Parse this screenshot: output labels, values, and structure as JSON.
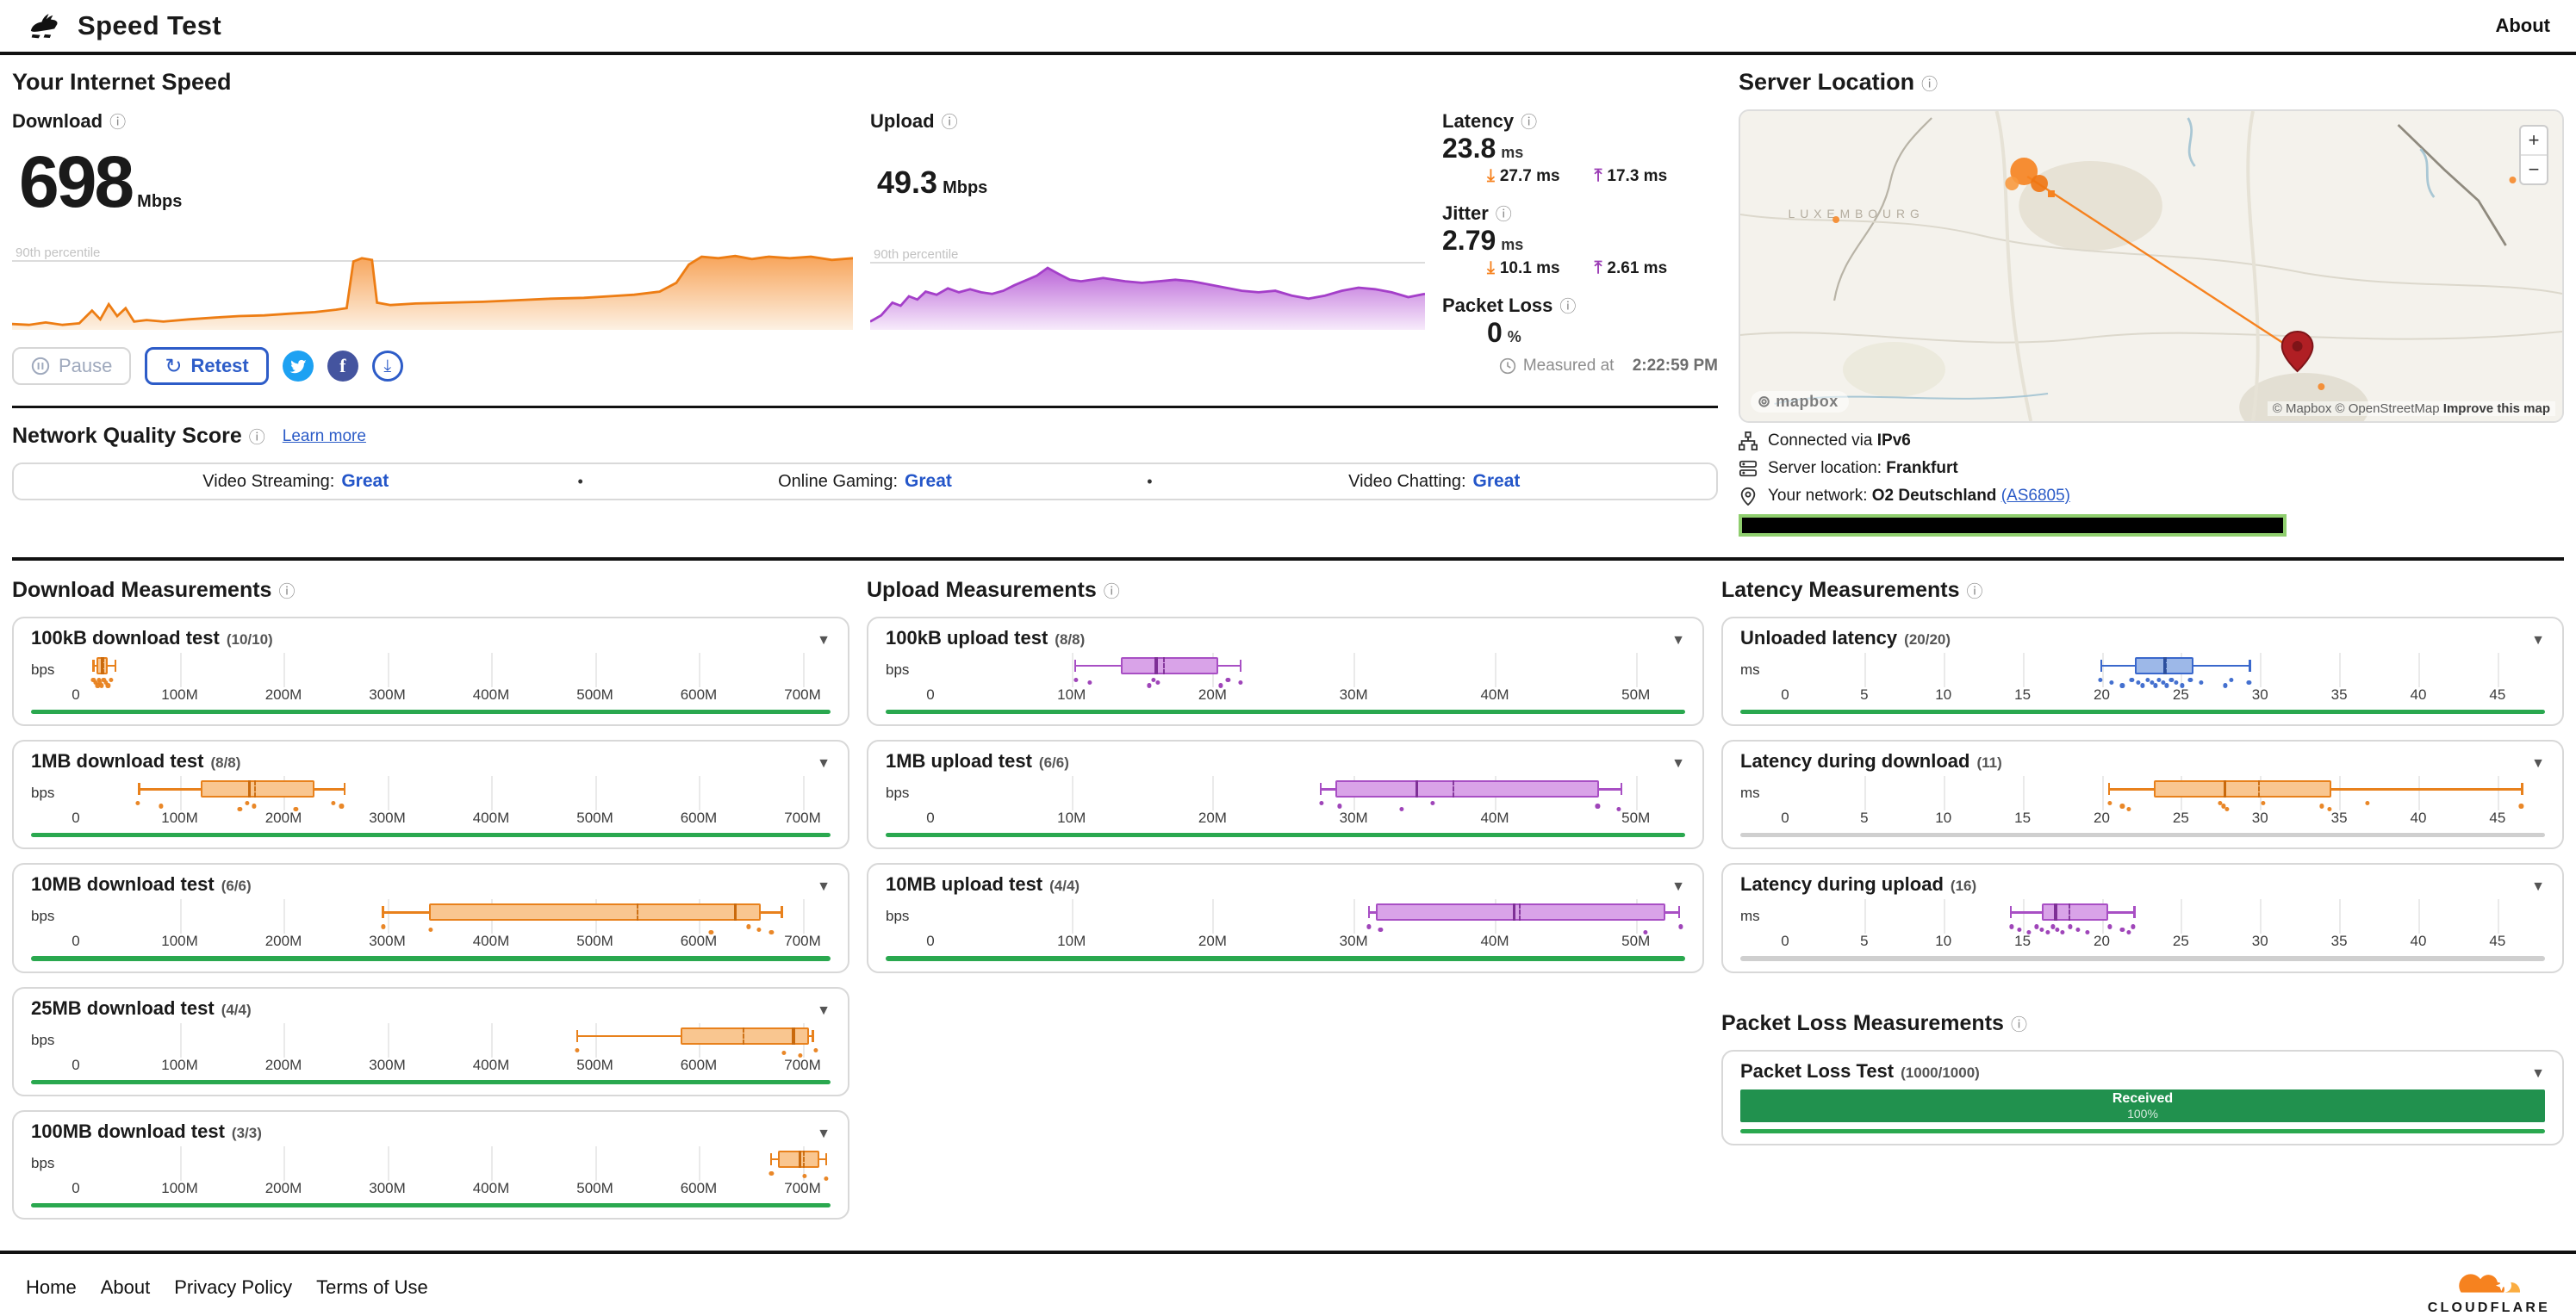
{
  "header": {
    "title": "Speed Test",
    "about": "About"
  },
  "icons": {
    "info": "ⓘ",
    "chevron_down": "▼",
    "down_arrow": "⤓",
    "up_arrow": "⤒",
    "retest": "↻",
    "bullet": "•",
    "download_share": "⤓"
  },
  "accent_colors": {
    "orange": "#f6821f",
    "purple": "#9a3bb5",
    "blue": "#3a68cc",
    "green": "#2aa84f",
    "link_blue": "#2b5bc7",
    "grey_bar": "#cfcfcf",
    "packet_green": "#21914e"
  },
  "speed": {
    "title": "Your Internet Speed",
    "download": {
      "label": "Download",
      "value": "698",
      "unit": "Mbps"
    },
    "upload": {
      "label": "Upload",
      "value": "49.3",
      "unit": "Mbps"
    },
    "latency": {
      "label": "Latency",
      "value": "23.8",
      "unit": "ms",
      "download_value": "27.7 ms",
      "upload_value": "17.3 ms"
    },
    "jitter": {
      "label": "Jitter",
      "value": "2.79",
      "unit": "ms",
      "download_value": "10.1 ms",
      "upload_value": "2.61 ms"
    },
    "packet_loss": {
      "label": "Packet Loss",
      "value": "0",
      "unit": "%"
    },
    "controls": {
      "pause": "Pause",
      "retest": "Retest"
    },
    "measured_prefix": "Measured at",
    "measured_time": "2:22:59 PM"
  },
  "nqs": {
    "title": "Network Quality Score",
    "learn_more": "Learn more",
    "separator": "•",
    "items": [
      {
        "label": "Video Streaming:",
        "value": "Great"
      },
      {
        "label": "Online Gaming:",
        "value": "Great"
      },
      {
        "label": "Video Chatting:",
        "value": "Great"
      }
    ]
  },
  "server": {
    "title": "Server Location",
    "map": {
      "region": "LUXEMBOURG",
      "zoom_in": "+",
      "zoom_out": "−",
      "logo": "mapbox",
      "attribution": "© Mapbox © OpenStreetMap",
      "improve": "Improve this map"
    },
    "connected_label": "Connected via",
    "connected_value": "IPv6",
    "location_label": "Server location:",
    "location_value": "Frankfurt",
    "network_label": "Your network:",
    "network_value": "O2 Deutschland",
    "network_asn": "(AS6805)"
  },
  "measurements": {
    "download_title": "Download Measurements",
    "upload_title": "Upload Measurements",
    "latency_title": "Latency Measurements",
    "packet_loss_title": "Packet Loss Measurements"
  },
  "footer": {
    "links": [
      "Home",
      "About",
      "Privacy Policy",
      "Terms of Use"
    ],
    "brand": "CLOUDFLARE"
  },
  "palettes": {
    "orange": {
      "stroke": "#e8811c",
      "fill": "#f9c690",
      "median": "#c9690c",
      "dot": "#e8811c"
    },
    "purple": {
      "stroke": "#a84fc4",
      "fill": "#d9a3e8",
      "median": "#7e2f96",
      "dot": "#9a3bb5"
    },
    "blue": {
      "stroke": "#3a68cc",
      "fill": "#9db8e8",
      "median": "#2c4f9e",
      "dot": "#3a68cc"
    }
  },
  "chart_data": [
    {
      "id": "download_speed_timeline",
      "type": "area",
      "label": "Download",
      "current_value_mbps": 698,
      "percentile_label": "90th percentile",
      "percentile_y": 0.2,
      "color": "#ed7d14",
      "fill_top": "#f7a45a",
      "fill_bottom": "#fdf1e3",
      "points": [
        [
          0,
          3
        ],
        [
          2,
          2
        ],
        [
          4,
          5
        ],
        [
          6,
          2
        ],
        [
          8,
          4
        ],
        [
          9.5,
          20
        ],
        [
          10.5,
          9
        ],
        [
          11.5,
          28
        ],
        [
          12.5,
          13
        ],
        [
          13.5,
          23
        ],
        [
          14.5,
          6
        ],
        [
          16,
          8
        ],
        [
          18,
          6
        ],
        [
          21,
          9
        ],
        [
          24,
          11
        ],
        [
          27,
          13
        ],
        [
          30,
          14
        ],
        [
          33,
          16
        ],
        [
          36,
          18
        ],
        [
          38.5,
          21
        ],
        [
          39.8,
          23
        ],
        [
          40.6,
          82
        ],
        [
          41.6,
          86
        ],
        [
          42.8,
          84
        ],
        [
          43.4,
          30
        ],
        [
          45,
          27
        ],
        [
          48,
          29
        ],
        [
          52,
          30
        ],
        [
          56,
          31
        ],
        [
          60,
          33
        ],
        [
          64,
          35
        ],
        [
          68,
          36
        ],
        [
          71,
          38
        ],
        [
          74,
          40
        ],
        [
          77,
          44
        ],
        [
          79,
          55
        ],
        [
          80.5,
          78
        ],
        [
          82,
          88
        ],
        [
          84,
          86
        ],
        [
          86,
          89
        ],
        [
          88,
          85
        ],
        [
          90,
          88
        ],
        [
          92.5,
          86
        ],
        [
          95,
          88
        ],
        [
          97.5,
          84
        ],
        [
          100,
          86
        ]
      ]
    },
    {
      "id": "upload_speed_timeline",
      "type": "area",
      "label": "Upload",
      "current_value_mbps": 49.3,
      "percentile_label": "90th percentile",
      "percentile_y": 0.22,
      "color": "#a43fc9",
      "fill_top": "#bb66d8",
      "fill_bottom": "#f7ebfb",
      "points": [
        [
          0,
          6
        ],
        [
          2,
          14
        ],
        [
          4,
          30
        ],
        [
          5.5,
          26
        ],
        [
          7,
          38
        ],
        [
          8.5,
          34
        ],
        [
          10,
          44
        ],
        [
          12,
          40
        ],
        [
          14,
          48
        ],
        [
          16,
          43
        ],
        [
          18,
          47
        ],
        [
          20,
          43
        ],
        [
          22,
          41
        ],
        [
          24,
          45
        ],
        [
          26,
          52
        ],
        [
          28,
          58
        ],
        [
          30,
          64
        ],
        [
          32,
          74
        ],
        [
          34,
          66
        ],
        [
          36,
          59
        ],
        [
          38,
          57
        ],
        [
          40,
          59
        ],
        [
          42,
          61
        ],
        [
          44,
          59
        ],
        [
          46,
          57
        ],
        [
          49,
          55
        ],
        [
          52,
          57
        ],
        [
          55,
          59
        ],
        [
          58,
          57
        ],
        [
          61,
          53
        ],
        [
          64,
          49
        ],
        [
          67,
          45
        ],
        [
          70,
          43
        ],
        [
          73,
          45
        ],
        [
          76,
          39
        ],
        [
          79,
          35
        ],
        [
          82,
          39
        ],
        [
          85,
          45
        ],
        [
          88,
          49
        ],
        [
          91,
          47
        ],
        [
          94,
          43
        ],
        [
          97,
          37
        ],
        [
          100,
          41
        ]
      ]
    },
    {
      "id": "download_measurements",
      "type": "boxplot_group",
      "unit": "bps",
      "axis_max": 727,
      "value_scale": "Mbps",
      "tick_values": [
        0,
        100,
        200,
        300,
        400,
        500,
        600,
        700
      ],
      "tick_labels": [
        "0",
        "100M",
        "200M",
        "300M",
        "400M",
        "500M",
        "600M",
        "700M"
      ],
      "charts": [
        {
          "label": "100kB download test",
          "count": "(10/10)",
          "palette": "orange",
          "bar_color": "green",
          "low": 16,
          "q1": 20,
          "median": 24,
          "mean": 26,
          "q3": 31,
          "high": 37,
          "samples": [
            17,
            19,
            21,
            22,
            23,
            25,
            27,
            29,
            31,
            34
          ]
        },
        {
          "label": "1MB download test",
          "count": "(8/8)",
          "palette": "orange",
          "bar_color": "green",
          "low": 60,
          "q1": 120,
          "median": 166,
          "mean": 172,
          "q3": 230,
          "high": 258,
          "samples": [
            60,
            82,
            158,
            165,
            172,
            212,
            248,
            256
          ]
        },
        {
          "label": "10MB download test",
          "count": "(6/6)",
          "palette": "orange",
          "bar_color": "green",
          "low": 295,
          "q1": 340,
          "median": 634,
          "mean": 540,
          "q3": 660,
          "high": 679,
          "samples": [
            296,
            342,
            612,
            648,
            658,
            670
          ]
        },
        {
          "label": "25MB download test",
          "count": "(4/4)",
          "palette": "orange",
          "bar_color": "green",
          "low": 482,
          "q1": 583,
          "median": 690,
          "mean": 642,
          "q3": 706,
          "high": 709,
          "samples": [
            483,
            682,
            698,
            713
          ]
        },
        {
          "label": "100MB download test",
          "count": "(3/3)",
          "palette": "orange",
          "bar_color": "green",
          "low": 669,
          "q1": 676,
          "median": 696,
          "mean": 700,
          "q3": 716,
          "high": 722,
          "samples": [
            670,
            702,
            723
          ]
        }
      ]
    },
    {
      "id": "upload_measurements",
      "type": "boxplot_group",
      "unit": "bps",
      "axis_max": 53.5,
      "value_scale": "Mbps",
      "tick_values": [
        0,
        10,
        20,
        30,
        40,
        50
      ],
      "tick_labels": [
        "0",
        "10M",
        "20M",
        "30M",
        "40M",
        "50M"
      ],
      "charts": [
        {
          "label": "100kB upload test",
          "count": "(8/8)",
          "palette": "purple",
          "bar_color": "green",
          "low": 10.2,
          "q1": 13.5,
          "median": 15.9,
          "mean": 16.5,
          "q3": 20.4,
          "high": 21.9,
          "samples": [
            10.3,
            11.3,
            15.5,
            15.8,
            16.1,
            20.6,
            21.1,
            22
          ]
        },
        {
          "label": "1MB upload test",
          "count": "(6/6)",
          "palette": "purple",
          "bar_color": "green",
          "low": 27.6,
          "q1": 28.7,
          "median": 34.4,
          "mean": 37,
          "q3": 47.4,
          "high": 48.9,
          "samples": [
            27.7,
            29,
            33.4,
            35.6,
            47.3,
            48.8
          ]
        },
        {
          "label": "10MB upload test",
          "count": "(4/4)",
          "palette": "purple",
          "bar_color": "green",
          "low": 31,
          "q1": 31.6,
          "median": 41.3,
          "mean": 41.7,
          "q3": 52.1,
          "high": 53,
          "samples": [
            31.1,
            31.9,
            50.7,
            53.2
          ]
        }
      ]
    },
    {
      "id": "latency_measurements",
      "type": "boxplot_group",
      "unit": "ms",
      "axis_max": 48,
      "value_scale": "ms",
      "tick_values": [
        0,
        5,
        10,
        15,
        20,
        25,
        30,
        35,
        40,
        45
      ],
      "tick_labels": [
        "0",
        "5",
        "10",
        "15",
        "20",
        "25",
        "30",
        "35",
        "40",
        "45"
      ],
      "charts": [
        {
          "label": "Unloaded latency",
          "count": "(20/20)",
          "palette": "blue",
          "bar_color": "green",
          "low": 19.9,
          "q1": 22.1,
          "median": 23.9,
          "mean": 24,
          "q3": 25.8,
          "high": 29.3,
          "samples": [
            19.9,
            20.6,
            21.3,
            21.9,
            22.3,
            22.6,
            22.9,
            23.2,
            23.4,
            23.6,
            23.9,
            24.1,
            24.4,
            24.7,
            25.1,
            25.6,
            26.3,
            27.8,
            28.2,
            29.3
          ]
        },
        {
          "label": "Latency during download",
          "count": "(11)",
          "palette": "orange",
          "bar_color": "grey",
          "low": 20.4,
          "q1": 23.3,
          "median": 27.7,
          "mean": 29.9,
          "q3": 34.5,
          "high": 46.5,
          "samples": [
            20.5,
            21.3,
            21.7,
            27.5,
            27.7,
            27.9,
            30.2,
            33.9,
            34.4,
            36.8,
            46.5
          ]
        },
        {
          "label": "Latency during upload",
          "count": "(16)",
          "palette": "purple",
          "bar_color": "grey",
          "low": 14.2,
          "q1": 16.2,
          "median": 17,
          "mean": 17.9,
          "q3": 20.4,
          "high": 22,
          "samples": [
            14.3,
            14.8,
            15.4,
            15.9,
            16.2,
            16.6,
            16.9,
            17.2,
            17.5,
            18,
            18.5,
            19.1,
            20.5,
            21.3,
            21.7,
            22
          ]
        }
      ]
    },
    {
      "id": "packet_loss_measurements",
      "type": "bar",
      "charts": [
        {
          "label": "Packet Loss Test",
          "count": "(1000/1000)",
          "bar_label": "Received",
          "bar_value": "100%",
          "received_pct": 100,
          "bar_color": "green"
        }
      ]
    }
  ]
}
